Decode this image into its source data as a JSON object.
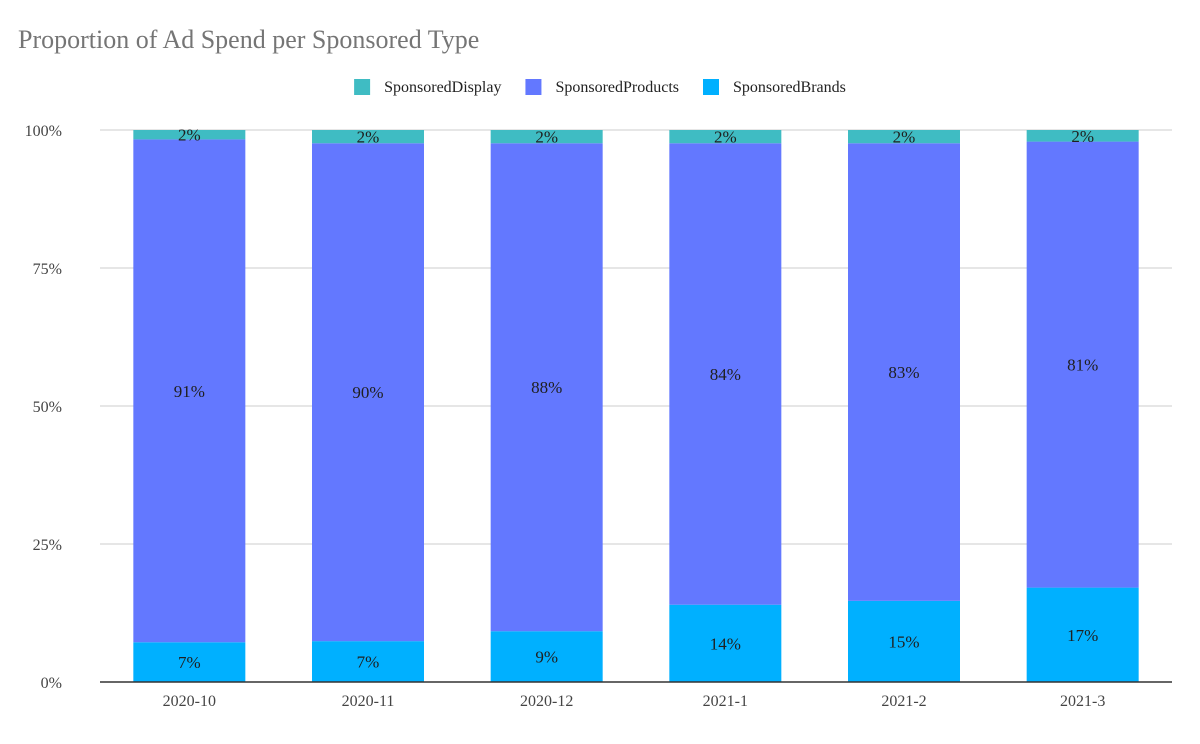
{
  "chart_data": {
    "type": "bar",
    "stacked": true,
    "percent_stacked": true,
    "title": "Proportion of Ad Spend per Sponsored Type",
    "xlabel": "",
    "ylabel": "",
    "categories": [
      "2020-10",
      "2020-11",
      "2020-12",
      "2021-1",
      "2021-2",
      "2021-3"
    ],
    "series": [
      {
        "name": "SponsoredBrands",
        "color": "#00b0ff",
        "values": [
          7.2,
          7.4,
          9.2,
          14.0,
          14.7,
          17.1
        ],
        "labels": [
          "7%",
          "7%",
          "9%",
          "14%",
          "15%",
          "17%"
        ]
      },
      {
        "name": "SponsoredProducts",
        "color": "#6378ff",
        "values": [
          91.1,
          90.2,
          88.4,
          83.6,
          82.9,
          80.8
        ],
        "labels": [
          "91%",
          "90%",
          "88%",
          "84%",
          "83%",
          "81%"
        ]
      },
      {
        "name": "SponsoredDisplay",
        "color": "#3fbcc3",
        "values": [
          1.7,
          2.4,
          2.4,
          2.4,
          2.4,
          2.1
        ],
        "labels": [
          "2%",
          "2%",
          "2%",
          "2%",
          "2%",
          "2%"
        ]
      }
    ],
    "legend_order": [
      "SponsoredDisplay",
      "SponsoredProducts",
      "SponsoredBrands"
    ],
    "legend_position": "top-center",
    "yticks": [
      "0%",
      "25%",
      "50%",
      "75%",
      "100%"
    ],
    "ylim": [
      0,
      100
    ],
    "grid": true
  }
}
